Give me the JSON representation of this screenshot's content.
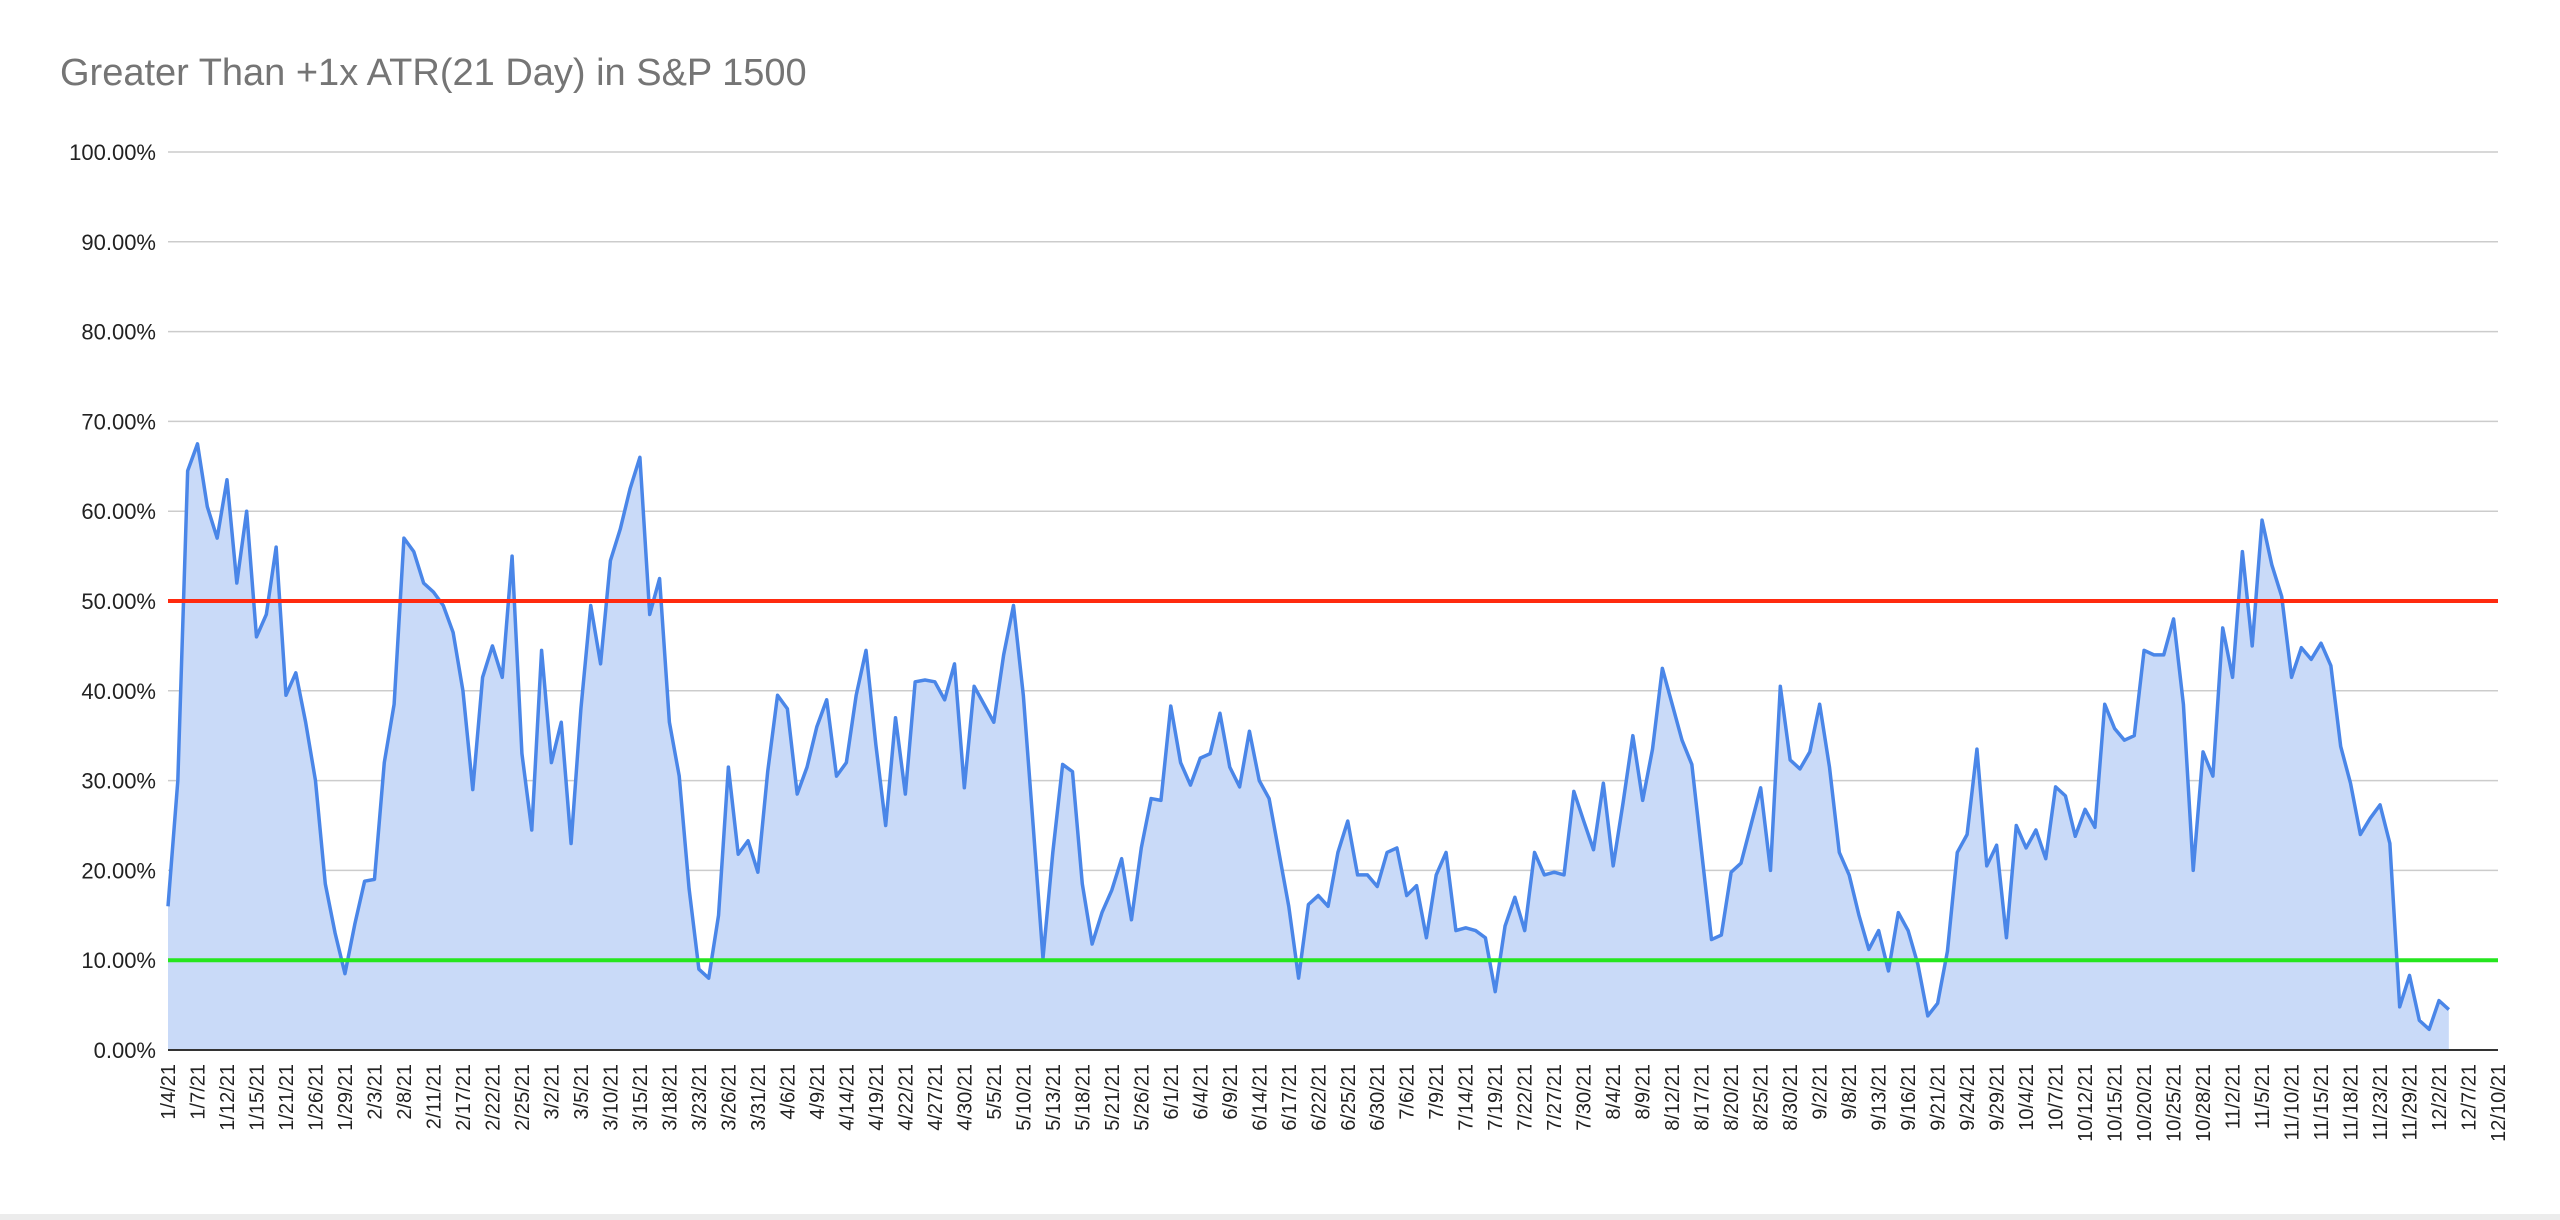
{
  "chart_data": {
    "type": "area",
    "title": "Greater Than +1x ATR(21 Day) in S&P 1500",
    "xlabel": "",
    "ylabel": "",
    "ylim": [
      0,
      100
    ],
    "y_ticks": [
      "0.00%",
      "10.00%",
      "20.00%",
      "30.00%",
      "40.00%",
      "50.00%",
      "60.00%",
      "70.00%",
      "80.00%",
      "90.00%",
      "100.00%"
    ],
    "x_tick_labels": [
      "1/4/21",
      "1/7/21",
      "1/12/21",
      "1/15/21",
      "1/21/21",
      "1/26/21",
      "1/29/21",
      "2/3/21",
      "2/8/21",
      "2/11/21",
      "2/17/21",
      "2/22/21",
      "2/25/21",
      "3/2/21",
      "3/5/21",
      "3/10/21",
      "3/15/21",
      "3/18/21",
      "3/23/21",
      "3/26/21",
      "3/31/21",
      "4/6/21",
      "4/9/21",
      "4/14/21",
      "4/19/21",
      "4/22/21",
      "4/27/21",
      "4/30/21",
      "5/5/21",
      "5/10/21",
      "5/13/21",
      "5/18/21",
      "5/21/21",
      "5/26/21",
      "6/1/21",
      "6/4/21",
      "6/9/21",
      "6/14/21",
      "6/17/21",
      "6/22/21",
      "6/25/21",
      "6/30/21",
      "7/6/21",
      "7/9/21",
      "7/14/21",
      "7/19/21",
      "7/22/21",
      "7/27/21",
      "7/30/21",
      "8/4/21",
      "8/9/21",
      "8/12/21",
      "8/17/21",
      "8/20/21",
      "8/25/21",
      "8/30/21",
      "9/2/21",
      "9/8/21",
      "9/13/21",
      "9/16/21",
      "9/21/21",
      "9/24/21",
      "9/29/21",
      "10/4/21",
      "10/7/21",
      "10/12/21",
      "10/15/21",
      "10/20/21",
      "10/25/21",
      "10/28/21",
      "11/2/21",
      "11/5/21",
      "11/10/21",
      "11/15/21",
      "11/18/21",
      "11/23/21",
      "11/29/21",
      "12/2/21",
      "12/7/21",
      "12/10/21"
    ],
    "x_domain_trading_days": [
      0,
      237
    ],
    "series": [
      {
        "color": "#4a86e8",
        "fill": "#c9daf8",
        "values": [
          16.0,
          30.0,
          64.5,
          67.5,
          60.5,
          57.0,
          63.5,
          52.0,
          60.0,
          46.0,
          48.5,
          56.0,
          39.5,
          42.0,
          36.5,
          30.0,
          18.5,
          13.0,
          8.5,
          14.0,
          18.8,
          19.0,
          32.0,
          38.5,
          57.0,
          55.5,
          52.0,
          51.0,
          49.5,
          46.5,
          40.0,
          29.0,
          41.5,
          45.0,
          41.5,
          55.0,
          33.0,
          24.5,
          44.5,
          32.0,
          36.5,
          23.0,
          38.0,
          49.5,
          43.0,
          54.5,
          58.0,
          62.5,
          66.0,
          48.5,
          52.5,
          36.5,
          30.5,
          18.0,
          9.0,
          8.0,
          15.0,
          31.5,
          21.8,
          23.3,
          19.8,
          31.0,
          39.5,
          38.0,
          28.5,
          31.5,
          36.0,
          39.0,
          30.5,
          32.0,
          39.5,
          44.5,
          34.0,
          25.0,
          37.0,
          28.5,
          41.0,
          41.2,
          41.0,
          39.0,
          43.0,
          29.2,
          40.5,
          38.5,
          36.5,
          44.0,
          49.5,
          39.5,
          25.0,
          10.2,
          22.0,
          31.8,
          31.0,
          18.5,
          11.8,
          15.3,
          17.8,
          21.3,
          14.5,
          22.5,
          28.0,
          27.8,
          38.3,
          32.0,
          29.5,
          32.5,
          33.0,
          37.5,
          31.5,
          29.3,
          35.5,
          30.0,
          28.0,
          22.0,
          16.0,
          8.0,
          16.2,
          17.2,
          16.0,
          22.0,
          25.5,
          19.5,
          19.5,
          18.2,
          22.0,
          22.5,
          17.2,
          18.3,
          12.5,
          19.5,
          22.0,
          13.3,
          13.6,
          13.3,
          12.5,
          6.5,
          13.8,
          17.0,
          13.3,
          22.0,
          19.5,
          19.8,
          19.5,
          28.8,
          25.5,
          22.3,
          29.7,
          20.5,
          27.5,
          35.0,
          27.8,
          33.5,
          42.5,
          38.5,
          34.5,
          31.8,
          22.0,
          12.3,
          12.8,
          19.8,
          20.8,
          25.0,
          29.2,
          20.0,
          40.5,
          32.3,
          31.3,
          33.2,
          38.5,
          31.5,
          22.0,
          19.5,
          15.0,
          11.2,
          13.3,
          8.8,
          15.3,
          13.3,
          9.5,
          3.8,
          5.2,
          11.0,
          22.0,
          24.0,
          33.5,
          20.5,
          22.8,
          12.5,
          25.0,
          22.5,
          24.5,
          21.3,
          29.3,
          28.3,
          23.8,
          26.8,
          24.8,
          38.5,
          35.8,
          34.5,
          35.0,
          44.5,
          44.0,
          44.0,
          48.0,
          38.5,
          20.0,
          33.2,
          30.5,
          47.0,
          41.5,
          55.5,
          45.0,
          59.0,
          54.0,
          50.5,
          41.5,
          44.8,
          43.5,
          45.3,
          42.8,
          33.8,
          29.7,
          24.0,
          25.8,
          27.3,
          23.0,
          4.8,
          8.3,
          3.3,
          2.3,
          5.5,
          4.5
        ]
      }
    ],
    "reference_lines": [
      {
        "value": 50,
        "color": "#ff2a0f"
      },
      {
        "value": 10,
        "color": "#25e61e"
      }
    ],
    "grid": true,
    "legend": "none"
  }
}
